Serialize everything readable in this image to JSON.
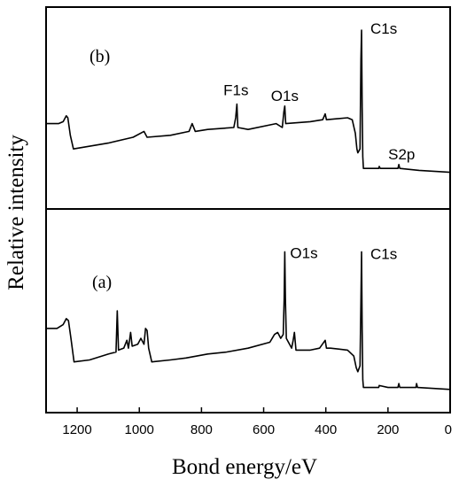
{
  "chart_data": {
    "type": "line",
    "xlabel": "Bond energy/eV",
    "ylabel": "Relative intensity",
    "xlim": [
      1300,
      0
    ],
    "x_reversed": true,
    "x_ticks": [
      1200,
      1000,
      800,
      600,
      400,
      200,
      0
    ],
    "grid": false,
    "legend": "none",
    "line_color": "#000000",
    "panels": [
      {
        "panel_label": "(b)",
        "position": "top",
        "ylim": [
          0,
          100
        ],
        "annotations": [
          {
            "text": "F1s",
            "x": 689,
            "y": 53
          },
          {
            "text": "O1s",
            "x": 532,
            "y": 50
          },
          {
            "text": "C1s",
            "x": 285,
            "y": 91
          },
          {
            "text": "S2p",
            "x": 165,
            "y": 20
          }
        ],
        "series": [
          {
            "points": [
              [
                1300,
                42
              ],
              [
                1260,
                42
              ],
              [
                1245,
                43
              ],
              [
                1235,
                46
              ],
              [
                1230,
                45
              ],
              [
                1222,
                36
              ],
              [
                1212,
                29
              ],
              [
                1100,
                32
              ],
              [
                1020,
                35
              ],
              [
                985,
                38
              ],
              [
                975,
                35
              ],
              [
                900,
                36
              ],
              [
                840,
                38
              ],
              [
                830,
                42
              ],
              [
                820,
                38
              ],
              [
                780,
                39
              ],
              [
                696,
                40
              ],
              [
                690,
                45
              ],
              [
                686,
                52
              ],
              [
                683,
                40
              ],
              [
                650,
                39
              ],
              [
                560,
                42
              ],
              [
                540,
                40
              ],
              [
                535,
                48
              ],
              [
                532,
                51
              ],
              [
                529,
                42
              ],
              [
                450,
                43
              ],
              [
                410,
                44
              ],
              [
                402,
                47
              ],
              [
                398,
                44
              ],
              [
                330,
                45
              ],
              [
                315,
                44
              ],
              [
                305,
                37
              ],
              [
                300,
                29
              ],
              [
                297,
                27
              ],
              [
                290,
                29
              ],
              [
                287,
                75
              ],
              [
                285,
                90
              ],
              [
                283,
                50
              ],
              [
                281,
                25
              ],
              [
                279,
                19
              ],
              [
                230,
                19
              ],
              [
                228,
                20
              ],
              [
                225,
                19
              ],
              [
                168,
                19
              ],
              [
                165,
                21
              ],
              [
                162,
                19
              ],
              [
                100,
                18
              ],
              [
                0,
                17
              ]
            ]
          }
        ]
      },
      {
        "panel_label": "(a)",
        "position": "bottom",
        "ylim": [
          0,
          100
        ],
        "annotations": [
          {
            "text": "O1s",
            "x": 532,
            "y": 79
          },
          {
            "text": "C1s",
            "x": 285,
            "y": 79
          }
        ],
        "series": [
          {
            "points": [
              [
                1300,
                41
              ],
              [
                1265,
                41
              ],
              [
                1245,
                43
              ],
              [
                1235,
                46
              ],
              [
                1228,
                45
              ],
              [
                1220,
                36
              ],
              [
                1210,
                24
              ],
              [
                1160,
                25
              ],
              [
                1100,
                28
              ],
              [
                1075,
                29
              ],
              [
                1071,
                50
              ],
              [
                1067,
                30
              ],
              [
                1050,
                31
              ],
              [
                1040,
                35
              ],
              [
                1035,
                31
              ],
              [
                1028,
                39
              ],
              [
                1023,
                32
              ],
              [
                1005,
                33
              ],
              [
                995,
                36
              ],
              [
                985,
                33
              ],
              [
                980,
                41
              ],
              [
                975,
                40
              ],
              [
                970,
                31
              ],
              [
                960,
                24
              ],
              [
                900,
                25
              ],
              [
                850,
                26
              ],
              [
                780,
                28
              ],
              [
                720,
                29
              ],
              [
                650,
                31
              ],
              [
                580,
                34
              ],
              [
                565,
                38
              ],
              [
                555,
                39
              ],
              [
                545,
                36
              ],
              [
                537,
                38
              ],
              [
                534,
                56
              ],
              [
                532,
                80
              ],
              [
                530,
                56
              ],
              [
                527,
                36
              ],
              [
                510,
                31
              ],
              [
                505,
                35
              ],
              [
                501,
                39
              ],
              [
                496,
                30
              ],
              [
                450,
                30
              ],
              [
                420,
                31
              ],
              [
                402,
                35
              ],
              [
                398,
                31
              ],
              [
                385,
                31
              ],
              [
                330,
                30
              ],
              [
                310,
                27
              ],
              [
                302,
                21
              ],
              [
                297,
                19
              ],
              [
                290,
                22
              ],
              [
                287,
                55
              ],
              [
                285,
                80
              ],
              [
                283,
                40
              ],
              [
                281,
                15
              ],
              [
                279,
                11
              ],
              [
                230,
                11
              ],
              [
                228,
                12
              ],
              [
                200,
                11
              ],
              [
                168,
                11
              ],
              [
                165,
                13
              ],
              [
                162,
                11
              ],
              [
                110,
                11
              ],
              [
                108,
                13
              ],
              [
                105,
                11
              ],
              [
                0,
                10
              ]
            ]
          }
        ]
      }
    ]
  }
}
